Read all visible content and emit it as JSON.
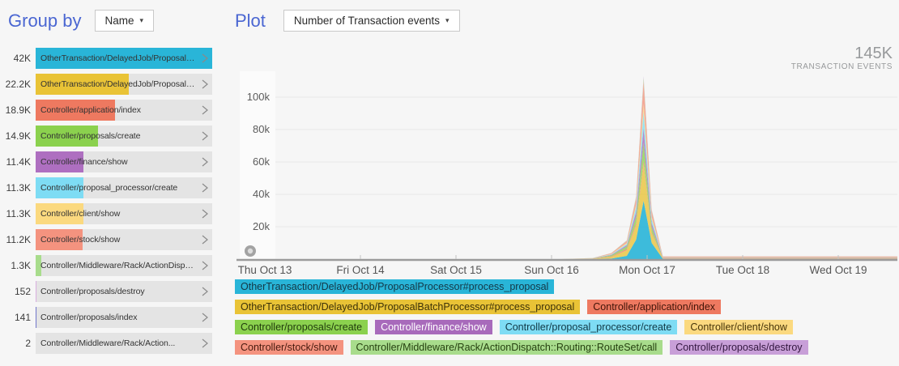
{
  "sidebar": {
    "title": "Group by",
    "dropdown": {
      "value": "Name"
    },
    "items": [
      {
        "count_label": "42K",
        "value": 42000,
        "name": "OtherTransaction/DelayedJob/ProposalProcessor#process_proposal",
        "color": "#29b5d8"
      },
      {
        "count_label": "22.2K",
        "value": 22200,
        "name": "OtherTransaction/DelayedJob/ProposalBatchProcessor#process_proposal",
        "color": "#e9c336"
      },
      {
        "count_label": "18.9K",
        "value": 18900,
        "name": "Controller/application/index",
        "color": "#ee7960"
      },
      {
        "count_label": "14.9K",
        "value": 14900,
        "name": "Controller/proposals/create",
        "color": "#8bd14e"
      },
      {
        "count_label": "11.4K",
        "value": 11400,
        "name": "Controller/finance/show",
        "color": "#ae6fc0"
      },
      {
        "count_label": "11.3K",
        "value": 11300,
        "name": "Controller/proposal_processor/create",
        "color": "#7edcf4"
      },
      {
        "count_label": "11.3K",
        "value": 11300,
        "name": "Controller/client/show",
        "color": "#fbd97f"
      },
      {
        "count_label": "11.2K",
        "value": 11200,
        "name": "Controller/stock/show",
        "color": "#f4937f"
      },
      {
        "count_label": "1.3K",
        "value": 1300,
        "name": "Controller/Middleware/Rack/ActionDispatch::Routing::RouteSet/call",
        "color": "#a8dc8c"
      },
      {
        "count_label": "152",
        "value": 152,
        "name": "Controller/proposals/destroy",
        "color": "#d9aee0"
      },
      {
        "count_label": "141",
        "value": 141,
        "name": "Controller/proposals/index",
        "color": "#7277cc"
      },
      {
        "count_label": "2",
        "value": 2,
        "name": "Controller/Middleware/Rack/Action...",
        "color": "#bdbdbd"
      }
    ]
  },
  "plot": {
    "title": "Plot",
    "dropdown": {
      "value": "Number of Transaction events"
    },
    "total": {
      "value": "145K",
      "unit": "TRANSACTION EVENTS"
    }
  },
  "icons": {
    "dropdown_caret": "▾"
  },
  "chart_data": {
    "type": "area",
    "stacked": true,
    "title": "Number of Transaction events",
    "total_label": "145K TRANSACTION EVENTS",
    "grid": true,
    "legend_position": "bottom",
    "x_axis": {
      "tick_labels": [
        "Thu Oct 13",
        "Fri Oct 14",
        "Sat Oct 15",
        "Sun Oct 16",
        "Mon Oct 17",
        "Tue Oct 18",
        "Wed Oct 19"
      ]
    },
    "y_axis": {
      "tick_labels": [
        "20k",
        "40k",
        "60k",
        "80k",
        "100k"
      ],
      "tick_values_k": [
        20,
        40,
        60,
        80,
        100
      ],
      "range_k": [
        0,
        116
      ]
    },
    "x_percent": [
      0,
      46,
      51,
      54,
      56.5,
      58,
      59.2,
      60.5,
      62.3,
      70,
      85,
      100
    ],
    "series": [
      {
        "name": "OtherTransaction/DelayedJob/ProposalProcessor#process_proposal",
        "color": "#29b5d8",
        "text_color": "#143746",
        "values_k": [
          0,
          0,
          0,
          0.3,
          2,
          12,
          36,
          10,
          0.1,
          0.1,
          0.1,
          0.1
        ]
      },
      {
        "name": "OtherTransaction/DelayedJob/ProposalBatchProcessor#process_proposal",
        "color": "#e9c336",
        "text_color": "#3d3208",
        "values_k": [
          0,
          0,
          0.2,
          1,
          3.5,
          9,
          23,
          6,
          0.2,
          0.2,
          0.2,
          0.2
        ]
      },
      {
        "name": "Controller/application/index",
        "color": "#ee7960",
        "text_color": "#401408",
        "values_k": [
          0,
          0,
          0.1,
          0.4,
          0.8,
          1.2,
          2,
          0.8,
          0.4,
          0.4,
          0.4,
          0.4
        ]
      },
      {
        "name": "Controller/proposals/create",
        "color": "#8bd14e",
        "text_color": "#1f3a0c",
        "values_k": [
          0,
          0,
          0.1,
          0.6,
          1.5,
          4,
          11,
          3,
          0.1,
          0.1,
          0.1,
          0.1
        ]
      },
      {
        "name": "Controller/finance/show",
        "color": "#a86abb",
        "text_color": "#ffffff",
        "values_k": [
          0,
          0,
          0.05,
          0.3,
          0.8,
          3,
          9,
          2.5,
          0.1,
          0.1,
          0.1,
          0.1
        ]
      },
      {
        "name": "Controller/proposal_processor/create",
        "color": "#7edcf4",
        "text_color": "#103845",
        "values_k": [
          0,
          0,
          0.05,
          0.3,
          0.8,
          3,
          10,
          2.5,
          0.1,
          0.1,
          0.1,
          0.1
        ]
      },
      {
        "name": "Controller/client/show",
        "color": "#fbd97f",
        "text_color": "#473509",
        "values_k": [
          0,
          0,
          0.05,
          0.2,
          0.6,
          1.5,
          5,
          1.5,
          0.15,
          0.15,
          0.15,
          0.15
        ]
      },
      {
        "name": "Controller/stock/show",
        "color": "#f4937f",
        "text_color": "#471a0e",
        "values_k": [
          0,
          0,
          0.1,
          0.5,
          1.2,
          4,
          14,
          3.5,
          0.5,
          0.5,
          0.5,
          0.5
        ]
      },
      {
        "name": "Controller/Middleware/Rack/ActionDispatch::Routing::RouteSet/call",
        "color": "#a8dc8c",
        "text_color": "#25400f",
        "values_k": [
          0,
          0,
          0.02,
          0.1,
          0.3,
          0.8,
          2,
          0.6,
          0.05,
          0.05,
          0.05,
          0.05
        ]
      },
      {
        "name": "Controller/proposals/destroy",
        "color": "#c89fd8",
        "text_color": "#331740",
        "values_k": [
          0,
          0,
          0,
          0.05,
          0.1,
          0.3,
          1,
          0.3,
          0.02,
          0.02,
          0.02,
          0.02
        ]
      }
    ],
    "legend_rows": [
      [
        0
      ],
      [
        1,
        2
      ],
      [
        3,
        4,
        5,
        6
      ],
      [
        7,
        8,
        9
      ]
    ]
  }
}
